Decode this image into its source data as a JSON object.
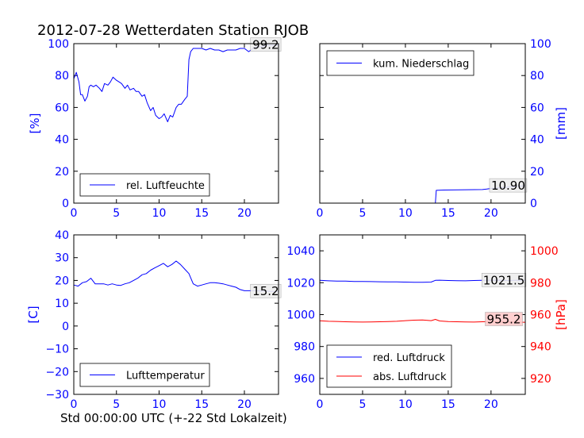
{
  "figure": {
    "title": "2012-07-28 Wetterdaten Station RJOB",
    "xlabel": "Std 00:00:00 UTC (+-22 Std Lokalzeit)"
  },
  "chart_data": [
    {
      "type": "line",
      "panel": "top-left",
      "ylabel": "[%]",
      "ylabel_side": "left",
      "ylabel_color": "#0000ff",
      "xlim": [
        0,
        24
      ],
      "ylim": [
        0,
        100
      ],
      "xticks": [
        "0",
        "5",
        "10",
        "15",
        "20"
      ],
      "yticks": [
        "0",
        "20",
        "40",
        "60",
        "80",
        "100"
      ],
      "tick_color": "#0000ff",
      "legend_position": "lower-center",
      "annotation": {
        "text": "99.2",
        "x": 22.5,
        "y": 99.2,
        "background": "#eeeeee"
      },
      "series": [
        {
          "name": "rel. Luftfeuchte",
          "color": "#0000ff",
          "x": [
            0,
            0.3,
            0.6,
            0.8,
            1.0,
            1.3,
            1.6,
            1.8,
            2.0,
            2.3,
            2.6,
            3.0,
            3.3,
            3.6,
            4.0,
            4.3,
            4.6,
            5.0,
            5.3,
            5.6,
            6.0,
            6.3,
            6.6,
            7.0,
            7.3,
            7.6,
            8.0,
            8.3,
            8.6,
            9.0,
            9.3,
            9.6,
            10.0,
            10.3,
            10.6,
            11.0,
            11.3,
            11.6,
            12.0,
            12.3,
            12.6,
            13.0,
            13.3,
            13.5,
            13.7,
            14.0,
            14.5,
            15.0,
            15.5,
            16.0,
            16.5,
            17.0,
            17.5,
            18.0,
            18.5,
            19.0,
            19.5,
            20.0,
            20.5,
            21.0,
            21.5,
            22.0,
            22.5,
            23.0,
            23.5,
            24.0
          ],
          "y": [
            78,
            82,
            76,
            68,
            68,
            64,
            67,
            73,
            74,
            73,
            74,
            72,
            70,
            75,
            74,
            76,
            79,
            77,
            76,
            75,
            72,
            74,
            71,
            72,
            70,
            70,
            67,
            68,
            63,
            58,
            60,
            55,
            53,
            54,
            56,
            51,
            55,
            54,
            60,
            62,
            62,
            65,
            67,
            90,
            95,
            97,
            97,
            97,
            96,
            97,
            96,
            96,
            95,
            96,
            96,
            96,
            97,
            97,
            95,
            97,
            98,
            98,
            99,
            99,
            99,
            99.2
          ]
        }
      ]
    },
    {
      "type": "line",
      "panel": "top-right",
      "ylabel": "[mm]",
      "ylabel_side": "right",
      "ylabel_color": "#0000ff",
      "xlim": [
        0,
        24
      ],
      "ylim": [
        0,
        100
      ],
      "xticks": [
        "0",
        "5",
        "10",
        "15",
        "20"
      ],
      "yticks": [
        "0",
        "20",
        "40",
        "60",
        "80",
        "100"
      ],
      "tick_color": "#0000ff",
      "legend_position": "upper-left",
      "annotation": {
        "text": "10.90",
        "x": 22,
        "y": 10.9,
        "background": "#eeeeee"
      },
      "series": [
        {
          "name": "kum. Niederschlag",
          "color": "#0000ff",
          "x": [
            0,
            13.5,
            13.6,
            14.5,
            19.0,
            19.5,
            20.0,
            21.0,
            22.0,
            23.0,
            24.0
          ],
          "y": [
            0,
            0,
            8,
            8.2,
            8.5,
            8.8,
            9.2,
            9.6,
            10.1,
            10.5,
            10.9
          ]
        }
      ]
    },
    {
      "type": "line",
      "panel": "bottom-left",
      "ylabel": "[C]",
      "ylabel_side": "left",
      "ylabel_color": "#0000ff",
      "xlim": [
        0,
        24
      ],
      "ylim": [
        -30,
        40
      ],
      "xticks": [
        "0",
        "5",
        "10",
        "15",
        "20"
      ],
      "yticks": [
        "−30",
        "−20",
        "−10",
        "0",
        "10",
        "20",
        "30",
        "40"
      ],
      "tick_color": "#0000ff",
      "legend_position": "lower-center",
      "annotation": {
        "text": "15.2",
        "x": 22.5,
        "y": 15.2,
        "background": "#eeeeee"
      },
      "series": [
        {
          "name": "Lufttemperatur",
          "color": "#0000ff",
          "x": [
            0,
            0.5,
            1.0,
            1.5,
            2.0,
            2.5,
            3.0,
            3.5,
            4.0,
            4.5,
            5.0,
            5.5,
            6.0,
            6.5,
            7.0,
            7.5,
            8.0,
            8.5,
            9.0,
            9.5,
            10.0,
            10.5,
            11.0,
            11.5,
            12.0,
            12.5,
            13.0,
            13.5,
            14.0,
            14.5,
            15.0,
            15.5,
            16.0,
            16.5,
            17.0,
            17.5,
            18.0,
            18.5,
            19.0,
            19.5,
            20.0,
            20.5,
            21.0,
            21.5,
            22.0,
            22.5,
            23.0,
            23.5,
            24.0
          ],
          "y": [
            18,
            17.5,
            19,
            19.5,
            21,
            18.5,
            18.5,
            18.5,
            18,
            18.5,
            18,
            17.8,
            18.5,
            19,
            20,
            21,
            22.5,
            23,
            24.5,
            25.5,
            26.5,
            27.5,
            26,
            27,
            28.5,
            27,
            25,
            23,
            18.5,
            17.5,
            18,
            18.5,
            19,
            19,
            18.8,
            18.5,
            18,
            17.5,
            17,
            16,
            15.5,
            15.5,
            15.5,
            15.5,
            15.3,
            15.3,
            15.2,
            15.2,
            15.2
          ]
        }
      ]
    },
    {
      "type": "line",
      "panel": "bottom-right",
      "ylabel": "[hPa]",
      "ylabel_side": "right",
      "ylabel_color": "#ff0000",
      "xlim": [
        0,
        24
      ],
      "ylim_left": [
        950,
        1050
      ],
      "ylim_right": [
        910,
        1010
      ],
      "xticks": [
        "0",
        "5",
        "10",
        "15",
        "20"
      ],
      "yticks_left": [
        "960",
        "980",
        "1000",
        "1020",
        "1040"
      ],
      "yticks_right": [
        "920",
        "940",
        "960",
        "980",
        "1000"
      ],
      "tick_color_left": "#0000ff",
      "tick_color_right": "#ff0000",
      "legend_position": "lower-left",
      "annotations": [
        {
          "text": "1021.5",
          "x": 21.5,
          "y": 1021.5,
          "background": "#eeeeee"
        },
        {
          "text": "955.2",
          "x": 21.5,
          "y": 997,
          "background": "#ffcccc"
        }
      ],
      "series": [
        {
          "name": "red. Luftdruck",
          "color": "#0000ff",
          "axis": "left",
          "x": [
            0,
            1,
            2,
            3,
            4,
            5,
            6,
            7,
            8,
            9,
            10,
            11,
            12,
            13,
            13.5,
            14,
            15,
            16,
            17,
            18,
            19,
            20,
            21,
            22,
            23,
            24
          ],
          "y": [
            1021.5,
            1021.2,
            1021,
            1021,
            1020.8,
            1020.8,
            1020.7,
            1020.6,
            1020.5,
            1020.5,
            1020.4,
            1020.3,
            1020.3,
            1020.4,
            1021.5,
            1021.6,
            1021.4,
            1021.3,
            1021.2,
            1021.4,
            1021.5,
            1021.5,
            1021.6,
            1021.4,
            1021.5,
            1021.5
          ]
        },
        {
          "name": "abs. Luftdruck",
          "color": "#ff0000",
          "axis": "right",
          "x": [
            0,
            1,
            2,
            3,
            4,
            5,
            6,
            7,
            8,
            9,
            10,
            11,
            12,
            13,
            13.5,
            14,
            15,
            16,
            17,
            18,
            19,
            20,
            21,
            22,
            23,
            24
          ],
          "y": [
            956.1,
            955.8,
            955.7,
            955.5,
            955.4,
            955.3,
            955.4,
            955.5,
            955.6,
            955.8,
            956.2,
            956.5,
            956.6,
            956.2,
            957.0,
            956.0,
            955.6,
            955.5,
            955.4,
            955.3,
            955.5,
            955.6,
            955.4,
            955.3,
            955.2,
            955.2
          ]
        }
      ]
    }
  ]
}
